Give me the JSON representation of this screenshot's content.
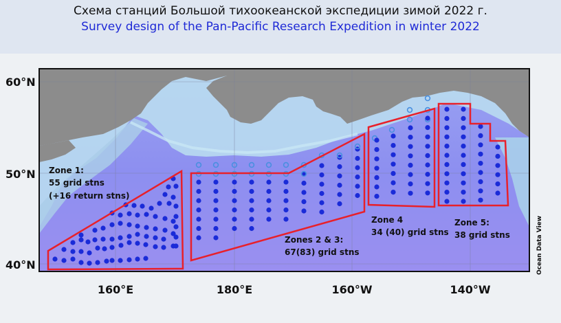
{
  "header": {
    "title_ru": "Схема станций Большой тихоокеанской экспедиции зимой 2022 г.",
    "title_en": "Survey design of the Pan-Pacific Research Expedition in winter 2022"
  },
  "axes": {
    "lat_labels": [
      "60°N",
      "50°N",
      "40°N"
    ],
    "lon_labels": [
      "160°E",
      "180°E",
      "160°W",
      "140°W"
    ]
  },
  "zones": {
    "zone1": {
      "line1": "Zone 1:",
      "line2": "55 grid stns",
      "line3": "(+16 return stns)"
    },
    "zone23": {
      "line1": "Zones 2 & 3:",
      "line2": "67(83) grid stns"
    },
    "zone4": {
      "line1": "Zone 4",
      "line2": "34 (40) grid stns"
    },
    "zone5": {
      "line1": "Zone 5:",
      "line2": "38 grid stns"
    }
  },
  "credit": "Ocean Data View",
  "colors": {
    "zone_outline": "#e8202a",
    "station_fill": "#1a2bd8",
    "return_station": "#4a8fe0",
    "land": "#8d8d8d",
    "ocean_deep": "#8a8ef0",
    "ocean_shelf": "#a8d4ec"
  }
}
